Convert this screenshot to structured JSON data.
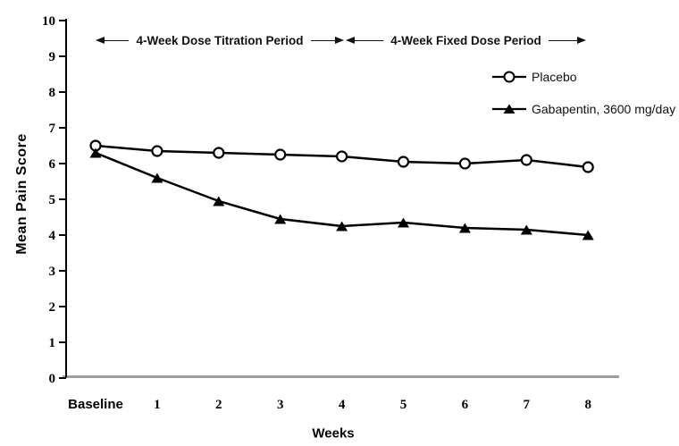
{
  "chart_data": {
    "type": "line",
    "title": "",
    "categories": [
      "Baseline",
      "1",
      "2",
      "3",
      "4",
      "5",
      "6",
      "7",
      "8"
    ],
    "series": [
      {
        "name": "Placebo",
        "marker": "open-circle",
        "color": "#000000",
        "values": [
          6.5,
          6.35,
          6.3,
          6.25,
          6.2,
          6.05,
          6.0,
          6.1,
          5.9
        ]
      },
      {
        "name": "Gabapentin, 3600 mg/day",
        "marker": "filled-triangle",
        "color": "#000000",
        "values": [
          6.3,
          5.6,
          4.95,
          4.45,
          4.25,
          4.35,
          4.2,
          4.15,
          4.0
        ]
      }
    ],
    "xlabel": "Weeks",
    "ylabel": "Mean Pain Score",
    "ylim": [
      0,
      10
    ],
    "yticks": [
      0,
      1,
      2,
      3,
      4,
      5,
      6,
      7,
      8,
      9,
      10
    ],
    "grid": false,
    "legend_position": "upper-right",
    "annotations": [
      {
        "text": "4-Week Dose Titration Period",
        "span": [
          "Baseline",
          "4"
        ]
      },
      {
        "text": "4-Week Fixed Dose Period",
        "span": [
          "4",
          "8"
        ]
      }
    ],
    "axis_colors": {
      "y_axis": "#000000",
      "x_axis": "#9e9e9e"
    }
  }
}
